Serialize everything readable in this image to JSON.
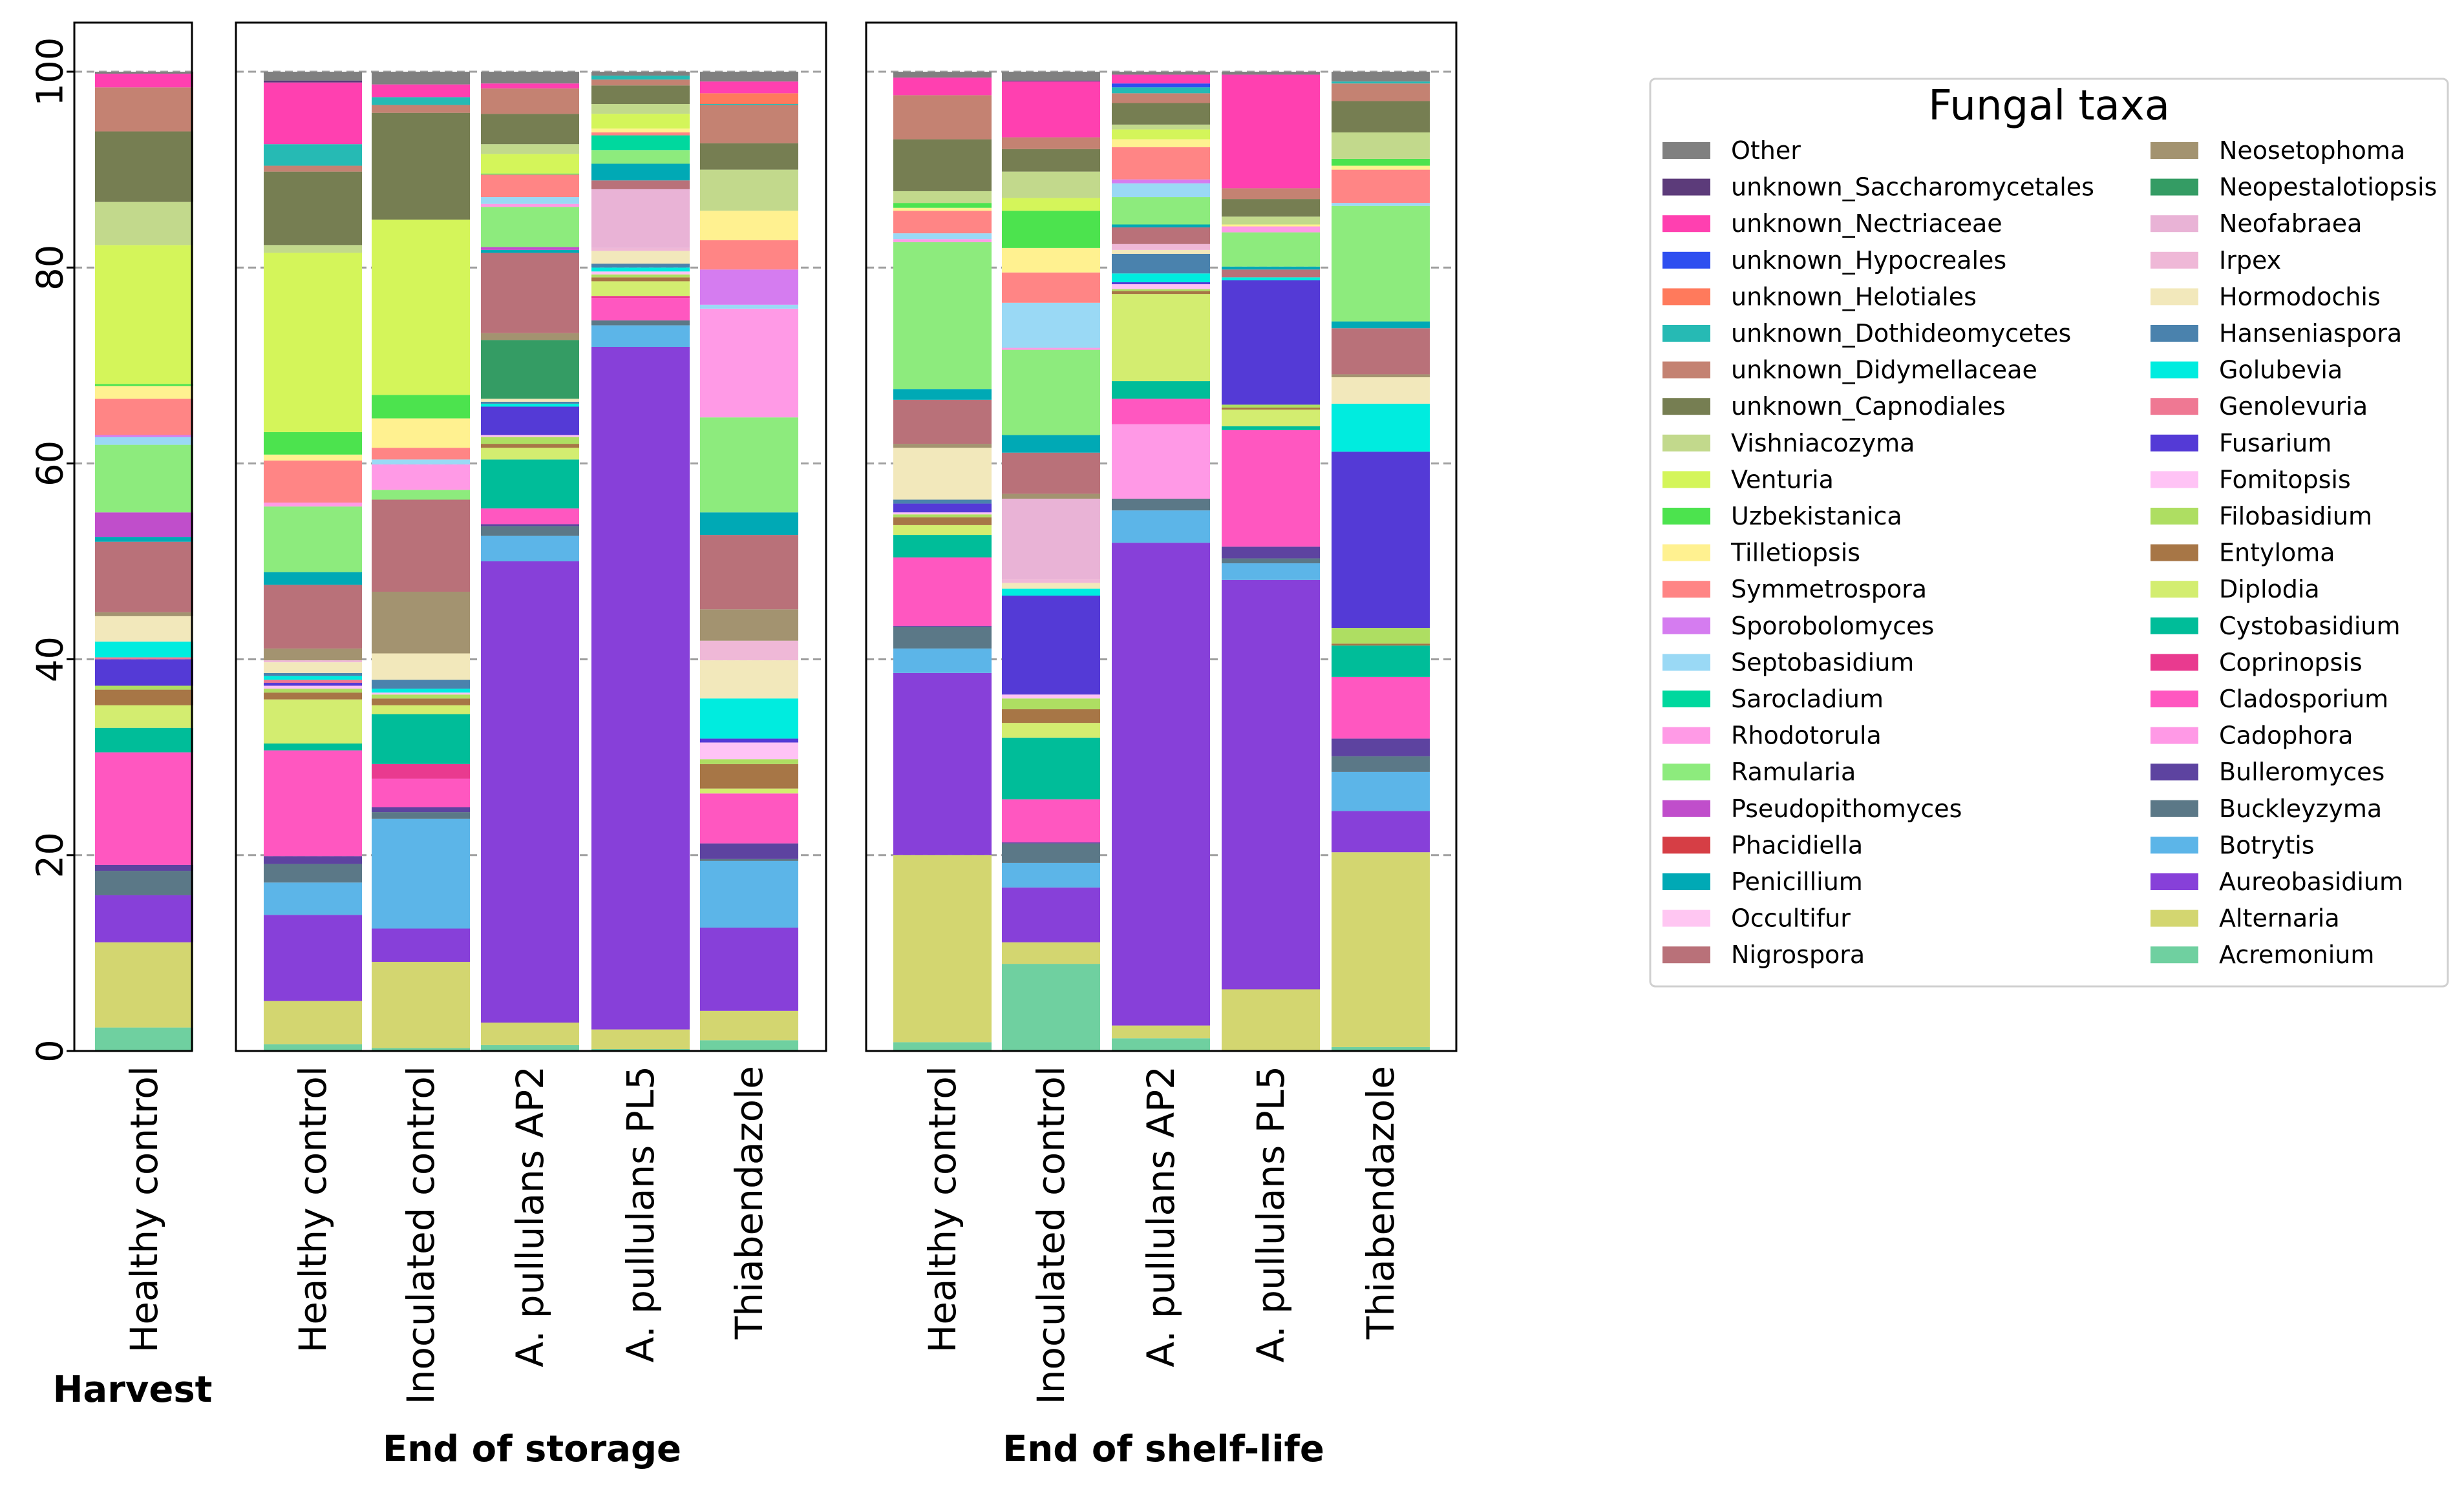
{
  "chart_data": {
    "type": "bar",
    "stacked": true,
    "ylabel": "",
    "ylim": [
      0,
      100
    ],
    "yticks": [
      "0",
      "20",
      "40",
      "60",
      "80",
      "100"
    ],
    "grid": "horizontal dashed",
    "legend": {
      "title": "Fungal taxa",
      "placement": "right"
    },
    "taxa": [
      {
        "name": "Other",
        "color": "#808080"
      },
      {
        "name": "unknown_Saccharomycetales",
        "color": "#5c3b7a"
      },
      {
        "name": "unknown_Nectriaceae",
        "color": "#ff40b0"
      },
      {
        "name": "unknown_Hypocreales",
        "color": "#2e4ff0"
      },
      {
        "name": "unknown_Helotiales",
        "color": "#ff7a5c"
      },
      {
        "name": "unknown_Dothideomycetes",
        "color": "#26bab4"
      },
      {
        "name": "unknown_Didymellaceae",
        "color": "#c48272"
      },
      {
        "name": "unknown_Capnodiales",
        "color": "#767e52"
      },
      {
        "name": "Vishniacozyma",
        "color": "#c2d98c"
      },
      {
        "name": "Venturia",
        "color": "#d4f55a"
      },
      {
        "name": "Uzbekistanica",
        "color": "#4ce34e"
      },
      {
        "name": "Tilletiopsis",
        "color": "#fff190"
      },
      {
        "name": "Symmetrospora",
        "color": "#ff8585"
      },
      {
        "name": "Sporobolomyces",
        "color": "#d57cf0"
      },
      {
        "name": "Septobasidium",
        "color": "#9ad9f5"
      },
      {
        "name": "Sarocladium",
        "color": "#00d89e"
      },
      {
        "name": "Rhodotorula",
        "color": "#ff9ae6"
      },
      {
        "name": "Ramularia",
        "color": "#8deb7d"
      },
      {
        "name": "Pseudopithomyces",
        "color": "#c04ecb"
      },
      {
        "name": "Phacidiella",
        "color": "#d63e45"
      },
      {
        "name": "Penicillium",
        "color": "#00a9b5"
      },
      {
        "name": "Occultifur",
        "color": "#ffc6f2"
      },
      {
        "name": "Nigrospora",
        "color": "#b97179"
      },
      {
        "name": "Neosetophoma",
        "color": "#a39370"
      },
      {
        "name": "Neopestalotiopsis",
        "color": "#349c64"
      },
      {
        "name": "Neofabraea",
        "color": "#e9b3d6"
      },
      {
        "name": "Irpex",
        "color": "#efb8d7"
      },
      {
        "name": "Hormodochis",
        "color": "#f2e8bb"
      },
      {
        "name": "Hanseniaspora",
        "color": "#4a82ad"
      },
      {
        "name": "Golubevia",
        "color": "#00ecdf"
      },
      {
        "name": "Genolevuria",
        "color": "#ef7893"
      },
      {
        "name": "Fusarium",
        "color": "#543ad6"
      },
      {
        "name": "Fomitopsis",
        "color": "#ffc3f5"
      },
      {
        "name": "Filobasidium",
        "color": "#aede62"
      },
      {
        "name": "Entyloma",
        "color": "#a77646"
      },
      {
        "name": "Diplodia",
        "color": "#d3ed70"
      },
      {
        "name": "Cystobasidium",
        "color": "#00bd99"
      },
      {
        "name": "Coprinopsis",
        "color": "#e93a8f"
      },
      {
        "name": "Cladosporium",
        "color": "#ff57c0"
      },
      {
        "name": "Cadophora",
        "color": "#ff99e6"
      },
      {
        "name": "Bulleromyces",
        "color": "#5d43a0"
      },
      {
        "name": "Buckleyzyma",
        "color": "#5b7887"
      },
      {
        "name": "Botrytis",
        "color": "#5cb5e8"
      },
      {
        "name": "Aureobasidium",
        "color": "#8740d9"
      },
      {
        "name": "Alternaria",
        "color": "#d3d670"
      },
      {
        "name": "Acremonium",
        "color": "#6fd0a0"
      }
    ],
    "stack_note": "cumulative percentage at top of each taxon segment, stacked bottom (Acremonium) to top (Other)",
    "groups": [
      {
        "label": "Harvest",
        "bars": [
          {
            "label": "Healthy control",
            "cumulative": {
              "Acremonium": 2.4,
              "Alternaria": 11.1,
              "Aureobasidium": 15.9,
              "Buckleyzyma": 18.4,
              "Bulleromyces": 19.0,
              "Cladosporium": 30.5,
              "Cystobasidium": 33.0,
              "Diplodia": 35.3,
              "Entyloma": 36.9,
              "Filobasidium": 37.3,
              "Fusarium": 40.0,
              "Genolevuria": 40.2,
              "Golubevia": 41.8,
              "Hormodochis": 44.4,
              "Neosetophoma": 44.8,
              "Nigrospora": 52.0,
              "Penicillium": 52.5,
              "Occultifur": 52.0,
              "Pseudopithomyces": 55.0,
              "Ramularia": 61.9,
              "Septobasidium": 62.7,
              "Sporobolomyces": 62.9,
              "Symmetrospora": 66.6,
              "Tilletiopsis": 67.9,
              "Uzbekistanica": 68.1,
              "Venturia": 82.3,
              "Vishniacozyma": 86.7,
              "unknown_Capnodiales": 93.9,
              "unknown_Didymellaceae": 98.4,
              "unknown_Nectriaceae": 99.8,
              "Other": 100
            }
          }
        ]
      },
      {
        "label": "End of storage",
        "bars": [
          {
            "label": "Healthy control",
            "cumulative": {
              "Acremonium": 0.7,
              "Alternaria": 5.1,
              "Aureobasidium": 13.9,
              "Botrytis": 17.2,
              "Buckleyzyma": 19.1,
              "Bulleromyces": 19.9,
              "Cladosporium": 30.7,
              "Cystobasidium": 31.4,
              "Diplodia": 35.9,
              "Entyloma": 36.6,
              "Filobasidium": 37.0,
              "Fomitopsis": 37.3,
              "Fusarium": 37.6,
              "Genolevuria": 37.9,
              "Golubevia": 38.3,
              "Hanseniaspora": 38.6,
              "Hormodochis": 39.7,
              "Irpex": 39.9,
              "Neosetophoma": 41.1,
              "Nigrospora": 47.6,
              "Penicillium": 48.9,
              "Ramularia": 55.6,
              "Rhodotorula": 56.0,
              "Symmetrospora": 60.3,
              "Tilletiopsis": 60.9,
              "Uzbekistanica": 63.2,
              "Venturia": 81.5,
              "Vishniacozyma": 82.3,
              "unknown_Capnodiales": 89.8,
              "unknown_Didymellaceae": 90.4,
              "unknown_Dothideomycetes": 92.6,
              "unknown_Nectriaceae": 98.9,
              "unknown_Saccharomycetales": 99.1,
              "Other": 100
            }
          },
          {
            "label": "Inoculated control",
            "cumulative": {
              "Acremonium": 0.3,
              "Alternaria": 9.1,
              "Aureobasidium": 12.5,
              "Botrytis": 23.7,
              "Buckleyzyma": 24.4,
              "Bulleromyces": 24.9,
              "Cladosporium": 27.8,
              "Coprinopsis": 29.3,
              "Cystobasidium": 34.4,
              "Diplodia": 35.3,
              "Entyloma": 36.0,
              "Filobasidium": 36.4,
              "Fomitopsis": 36.6,
              "Golubevia": 37.0,
              "Hanseniaspora": 37.9,
              "Hormodochis": 40.6,
              "Neosetophoma": 46.9,
              "Nigrospora": 56.3,
              "Ramularia": 57.3,
              "Rhodotorula": 59.9,
              "Septobasidium": 60.4,
              "Symmetrospora": 61.6,
              "Tilletiopsis": 64.6,
              "Uzbekistanica": 67.0,
              "Venturia": 84.9,
              "unknown_Capnodiales": 95.8,
              "unknown_Didymellaceae": 96.6,
              "unknown_Dothideomycetes": 97.4,
              "unknown_Nectriaceae": 98.7,
              "Other": 100
            }
          },
          {
            "label": "A. pullulans AP2",
            "cumulative": {
              "Acremonium": 0.6,
              "Alternaria": 2.9,
              "Aureobasidium": 50.0,
              "Botrytis": 52.6,
              "Buckleyzyma": 53.6,
              "Bulleromyces": 53.8,
              "Cladosporium": 55.4,
              "Cystobasidium": 60.4,
              "Diplodia": 61.6,
              "Entyloma": 62.0,
              "Filobasidium": 62.7,
              "Fomitopsis": 62.9,
              "Fusarium": 65.8,
              "Golubevia": 66.1,
              "Hanseniaspora": 66.3,
              "Hormodochis": 66.6,
              "Neopestalotiopsis": 72.6,
              "Neosetophoma": 73.3,
              "Nigrospora": 81.5,
              "Penicillium": 81.8,
              "Pseudopithomyces": 82.1,
              "Ramularia": 86.2,
              "Rhodotorula": 86.5,
              "Septobasidium": 87.2,
              "Symmetrospora": 89.5,
              "Uzbekistanica": 89.6,
              "Venturia": 91.6,
              "Vishniacozyma": 92.6,
              "unknown_Capnodiales": 95.7,
              "unknown_Didymellaceae": 98.3,
              "unknown_Nectriaceae": 98.8,
              "Other": 100
            }
          },
          {
            "label": "A. pullulans PL5",
            "cumulative": {
              "Acremonium": 0.2,
              "Alternaria": 2.2,
              "Aureobasidium": 71.9,
              "Botrytis": 74.1,
              "Buckleyzyma": 74.6,
              "Cladosporium": 76.9,
              "Coprinopsis": 77.1,
              "Diplodia": 78.6,
              "Entyloma": 79.0,
              "Filobasidium": 79.3,
              "Fomitopsis": 79.6,
              "Golubevia": 80.0,
              "Hanseniaspora": 80.4,
              "Hormodochis": 81.7,
              "Irpex": 82.0,
              "Neofabraea": 88.0,
              "Nigrospora": 88.9,
              "Penicillium": 90.6,
              "Ramularia": 92.0,
              "Sarocladium": 93.5,
              "Symmetrospora": 93.8,
              "Tilletiopsis": 94.2,
              "Venturia": 95.7,
              "Vishniacozyma": 96.7,
              "unknown_Capnodiales": 98.6,
              "unknown_Didymellaceae": 99.2,
              "unknown_Dothideomycetes": 99.6,
              "Other": 100
            }
          },
          {
            "label": "Thiabendazole",
            "cumulative": {
              "Acremonium": 1.1,
              "Alternaria": 4.1,
              "Aureobasidium": 12.6,
              "Botrytis": 19.4,
              "Buckleyzyma": 19.6,
              "Bulleromyces": 21.2,
              "Cladosporium": 26.3,
              "Diplodia": 26.8,
              "Entyloma": 29.3,
              "Filobasidium": 29.8,
              "Fomitopsis": 31.5,
              "Fusarium": 31.9,
              "Golubevia": 36.0,
              "Hormodochis": 39.9,
              "Irpex": 41.9,
              "Neosetophoma": 45.1,
              "Nigrospora": 52.7,
              "Penicillium": 55.0,
              "Ramularia": 64.7,
              "Rhodotorula": 75.8,
              "Septobasidium": 76.2,
              "Sporobolomyces": 79.8,
              "Symmetrospora": 82.8,
              "Tilletiopsis": 85.8,
              "Vishniacozyma": 90.0,
              "unknown_Capnodiales": 92.7,
              "unknown_Didymellaceae": 96.6,
              "unknown_Dothideomycetes": 96.7,
              "unknown_Helotiales": 97.8,
              "unknown_Nectriaceae": 99.0,
              "Other": 100
            }
          }
        ]
      },
      {
        "label": "End of shelf-life",
        "bars": [
          {
            "label": "Healthy control",
            "cumulative": {
              "Acremonium": 0.9,
              "Alternaria": 20.0,
              "Aureobasidium": 38.6,
              "Botrytis": 41.1,
              "Buckleyzyma": 43.3,
              "Bulleromyces": 43.4,
              "Cladosporium": 50.4,
              "Cystobasidium": 52.7,
              "Diplodia": 53.7,
              "Entyloma": 54.5,
              "Filobasidium": 54.8,
              "Fomitopsis": 55.0,
              "Fusarium": 55.9,
              "Hanseniaspora": 56.3,
              "Hormodochis": 61.6,
              "Neosetophoma": 62.0,
              "Nigrospora": 66.5,
              "Penicillium": 67.6,
              "Ramularia": 82.6,
              "Rhodotorula": 82.9,
              "Septobasidium": 83.5,
              "Symmetrospora": 85.8,
              "Tilletiopsis": 86.1,
              "Uzbekistanica": 86.6,
              "Vishniacozyma": 87.8,
              "unknown_Capnodiales": 93.1,
              "unknown_Didymellaceae": 97.6,
              "unknown_Nectriaceae": 99.4,
              "Other": 100
            }
          },
          {
            "label": "Inoculated control",
            "cumulative": {
              "Acremonium": 8.9,
              "Alternaria": 11.1,
              "Aureobasidium": 16.7,
              "Botrytis": 19.2,
              "Buckleyzyma": 21.2,
              "Bulleromyces": 21.3,
              "Cladosporium": 25.7,
              "Cystobasidium": 32.0,
              "Diplodia": 33.5,
              "Entyloma": 34.9,
              "Filobasidium": 36.0,
              "Fomitopsis": 36.4,
              "Fusarium": 46.5,
              "Golubevia": 47.2,
              "Hormodochis": 47.8,
              "Irpex": 48.2,
              "Neofabraea": 56.4,
              "Neosetophoma": 56.9,
              "Nigrospora": 61.1,
              "Penicillium": 62.9,
              "Ramularia": 71.6,
              "Rhodotorula": 71.8,
              "Septobasidium": 76.4,
              "Symmetrospora": 79.5,
              "Tilletiopsis": 82.0,
              "Uzbekistanica": 85.8,
              "Venturia": 87.1,
              "Vishniacozyma": 89.8,
              "unknown_Capnodiales": 92.1,
              "unknown_Didymellaceae": 93.3,
              "unknown_Nectriaceae": 99.0,
              "unknown_Saccharomycetales": 99.1,
              "Other": 100
            }
          },
          {
            "label": "A. pullulans AP2",
            "cumulative": {
              "Acremonium": 1.3,
              "Alternaria": 2.6,
              "Aureobasidium": 51.9,
              "Botrytis": 55.2,
              "Buckleyzyma": 56.4,
              "Cadophora": 64.0,
              "Cladosporium": 66.6,
              "Cystobasidium": 68.4,
              "Diplodia": 77.3,
              "Entyloma": 77.6,
              "Filobasidium": 77.8,
              "Fomitopsis": 78.3,
              "Fusarium": 78.5,
              "Golubevia": 79.4,
              "Hanseniaspora": 81.4,
              "Hormodochis": 81.8,
              "Irpex": 82.4,
              "Nigrospora": 84.1,
              "Penicillium": 84.4,
              "Ramularia": 87.2,
              "Septobasidium": 88.6,
              "Sporobolomyces": 89.0,
              "Symmetrospora": 92.3,
              "Tilletiopsis": 93.1,
              "Venturia": 94.1,
              "Vishniacozyma": 94.6,
              "unknown_Capnodiales": 96.8,
              "unknown_Didymellaceae": 97.8,
              "unknown_Dothideomycetes": 98.4,
              "unknown_Hypocreales": 98.8,
              "unknown_Nectriaceae": 99.7,
              "Other": 100
            }
          },
          {
            "label": "A. pullulans PL5",
            "cumulative": {
              "Alternaria": 6.3,
              "Aureobasidium": 48.1,
              "Botrytis": 49.8,
              "Buckleyzyma": 50.3,
              "Bulleromyces": 51.5,
              "Cladosporium": 63.4,
              "Cystobasidium": 63.8,
              "Diplodia": 65.5,
              "Entyloma": 65.7,
              "Filobasidium": 66.0,
              "Fusarium": 78.7,
              "Golubevia": 79.0,
              "Nigrospora": 79.8,
              "Penicillium": 80.1,
              "Ramularia": 83.6,
              "Rhodotorula": 84.2,
              "Tilletiopsis": 84.4,
              "Vishniacozyma": 85.2,
              "unknown_Capnodiales": 87.0,
              "unknown_Didymellaceae": 88.1,
              "unknown_Nectriaceae": 99.7,
              "Other": 100
            }
          },
          {
            "label": "Thiabendazole",
            "cumulative": {
              "Acremonium": 0.4,
              "Alternaria": 20.3,
              "Aureobasidium": 24.5,
              "Botrytis": 28.5,
              "Buckleyzyma": 30.1,
              "Bulleromyces": 31.9,
              "Cladosporium": 38.2,
              "Cystobasidium": 41.4,
              "Entyloma": 41.6,
              "Filobasidium": 43.2,
              "Fusarium": 61.2,
              "Golubevia": 66.1,
              "Hormodochis": 68.8,
              "Neosetophoma": 69.1,
              "Nigrospora": 73.8,
              "Penicillium": 74.5,
              "Ramularia": 86.3,
              "Septobasidium": 86.6,
              "Symmetrospora": 90.0,
              "Tilletiopsis": 90.4,
              "Uzbekistanica": 91.1,
              "Vishniacozyma": 93.8,
              "unknown_Capnodiales": 97.0,
              "unknown_Didymellaceae": 98.8,
              "unknown_Dothideomycetes": 99.0,
              "Other": 100
            }
          }
        ]
      }
    ]
  }
}
